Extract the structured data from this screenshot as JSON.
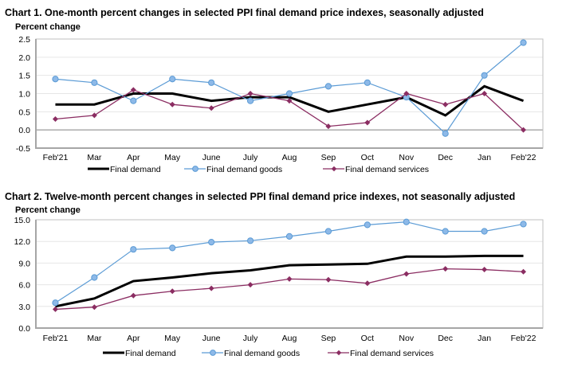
{
  "colors": {
    "final_demand": "#000000",
    "goods": "#5B9BD5",
    "goods_marker_fill": "#8DB9E8",
    "services": "#8B2D62",
    "grid": "#E6E6E6",
    "frame": "#BFBFBF",
    "zero_line": "#808080"
  },
  "chart_data": [
    {
      "type": "line",
      "title": "Chart 1. One-month percent changes in selected PPI final demand price indexes, seasonally adjusted",
      "ylabel": "Percent change",
      "xlabel": "",
      "categories": [
        "Feb'21",
        "Mar",
        "Apr",
        "May",
        "June",
        "July",
        "Aug",
        "Sep",
        "Oct",
        "Nov",
        "Dec",
        "Jan",
        "Feb'22"
      ],
      "ylim": [
        -0.5,
        2.5
      ],
      "yticks": [
        -0.5,
        0.0,
        0.5,
        1.0,
        1.5,
        2.0,
        2.5
      ],
      "ytick_labels": [
        "-0.5",
        "0.0",
        "0.5",
        "1.0",
        "1.5",
        "2.0",
        "2.5"
      ],
      "grid": true,
      "legend_position": "bottom",
      "series": [
        {
          "name": "Final demand",
          "key": "final_demand",
          "marker": "none",
          "values": [
            0.7,
            0.7,
            1.0,
            1.0,
            0.8,
            0.9,
            0.9,
            0.5,
            0.7,
            0.9,
            0.4,
            1.2,
            0.8
          ]
        },
        {
          "name": "Final demand goods",
          "key": "goods",
          "marker": "circle",
          "values": [
            1.4,
            1.3,
            0.8,
            1.4,
            1.3,
            0.8,
            1.0,
            1.2,
            1.3,
            0.9,
            -0.1,
            1.5,
            2.4
          ]
        },
        {
          "name": "Final demand services",
          "key": "services",
          "marker": "diamond",
          "values": [
            0.3,
            0.4,
            1.1,
            0.7,
            0.6,
            1.0,
            0.8,
            0.1,
            0.2,
            1.0,
            0.7,
            1.0,
            0.0
          ]
        }
      ]
    },
    {
      "type": "line",
      "title": "Chart 2. Twelve-month percent changes in selected PPI final demand price indexes, not seasonally adjusted",
      "ylabel": "Percent change",
      "xlabel": "",
      "categories": [
        "Feb'21",
        "Mar",
        "Apr",
        "May",
        "June",
        "July",
        "Aug",
        "Sep",
        "Oct",
        "Nov",
        "Dec",
        "Jan",
        "Feb'22"
      ],
      "ylim": [
        0.0,
        15.0
      ],
      "yticks": [
        0.0,
        3.0,
        6.0,
        9.0,
        12.0,
        15.0
      ],
      "ytick_labels": [
        "0.0",
        "3.0",
        "6.0",
        "9.0",
        "12.0",
        "15.0"
      ],
      "grid": true,
      "legend_position": "bottom",
      "series": [
        {
          "name": "Final demand",
          "key": "final_demand",
          "marker": "none",
          "values": [
            3.0,
            4.1,
            6.5,
            7.0,
            7.6,
            8.0,
            8.7,
            8.8,
            8.9,
            9.9,
            9.9,
            10.0,
            10.0
          ]
        },
        {
          "name": "Final demand goods",
          "key": "goods",
          "marker": "circle",
          "values": [
            3.5,
            7.0,
            10.9,
            11.1,
            11.9,
            12.1,
            12.7,
            13.4,
            14.3,
            14.7,
            13.4,
            13.4,
            14.4
          ]
        },
        {
          "name": "Final demand services",
          "key": "services",
          "marker": "diamond",
          "values": [
            2.6,
            2.9,
            4.5,
            5.1,
            5.5,
            6.0,
            6.8,
            6.7,
            6.2,
            7.5,
            8.2,
            8.1,
            7.8
          ]
        }
      ]
    }
  ]
}
